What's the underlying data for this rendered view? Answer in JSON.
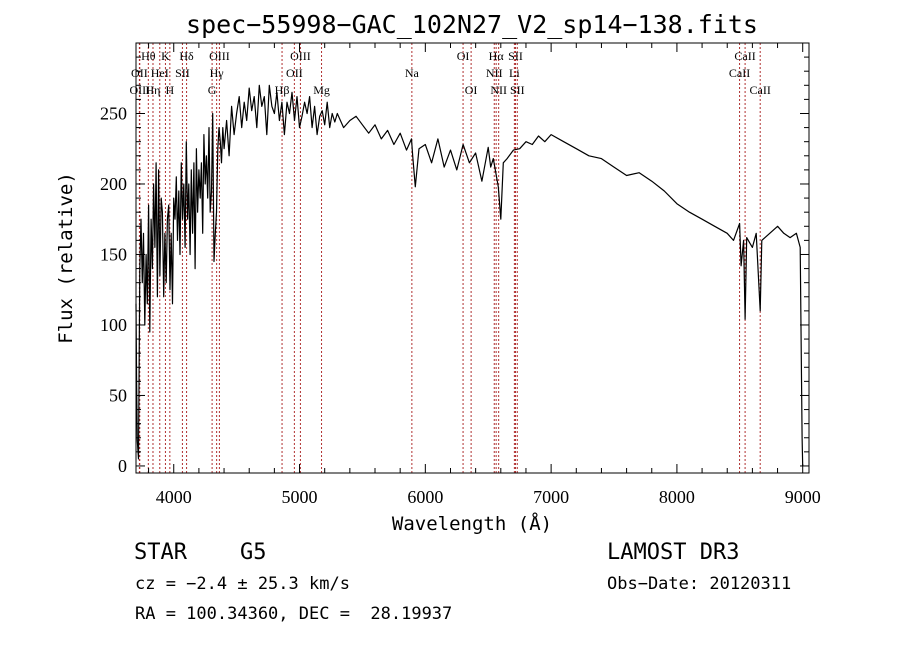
{
  "chart_data": {
    "type": "line",
    "title": "spec−55998−GAC_102N27_V2_sp14−138.fits",
    "xlabel": "Wavelength (Å)",
    "ylabel": "Flux (relative)",
    "xlim": [
      3700,
      9050
    ],
    "ylim": [
      -5,
      300
    ],
    "xticks": [
      4000,
      5000,
      6000,
      7000,
      8000,
      9000
    ],
    "yticks": [
      0,
      50,
      100,
      150,
      200,
      250
    ],
    "colors": {
      "spectrum": "#000000",
      "line_marker": "#b03030"
    },
    "series": [
      {
        "name": "spectrum",
        "x": [
          3700,
          3705,
          3710,
          3720,
          3730,
          3740,
          3750,
          3760,
          3770,
          3780,
          3790,
          3800,
          3810,
          3820,
          3830,
          3840,
          3850,
          3860,
          3870,
          3880,
          3890,
          3900,
          3910,
          3920,
          3930,
          3940,
          3950,
          3960,
          3970,
          3980,
          3990,
          4000,
          4010,
          4020,
          4030,
          4040,
          4050,
          4060,
          4070,
          4080,
          4090,
          4100,
          4110,
          4120,
          4130,
          4140,
          4150,
          4160,
          4170,
          4180,
          4190,
          4200,
          4210,
          4220,
          4230,
          4240,
          4250,
          4260,
          4270,
          4280,
          4290,
          4300,
          4310,
          4320,
          4330,
          4340,
          4350,
          4360,
          4370,
          4380,
          4390,
          4400,
          4420,
          4440,
          4460,
          4480,
          4500,
          4520,
          4540,
          4560,
          4580,
          4600,
          4620,
          4640,
          4660,
          4680,
          4700,
          4720,
          4740,
          4760,
          4780,
          4800,
          4820,
          4840,
          4860,
          4880,
          4900,
          4920,
          4940,
          4960,
          4980,
          5000,
          5020,
          5040,
          5060,
          5080,
          5100,
          5120,
          5140,
          5160,
          5180,
          5200,
          5220,
          5240,
          5260,
          5280,
          5300,
          5350,
          5400,
          5450,
          5500,
          5550,
          5600,
          5650,
          5700,
          5750,
          5800,
          5850,
          5890,
          5900,
          5920,
          5950,
          6000,
          6050,
          6100,
          6150,
          6200,
          6250,
          6300,
          6350,
          6400,
          6450,
          6500,
          6520,
          6540,
          6560,
          6580,
          6600,
          6620,
          6650,
          6700,
          6750,
          6800,
          6850,
          6900,
          6950,
          7000,
          7100,
          7200,
          7300,
          7400,
          7500,
          7600,
          7700,
          7800,
          7900,
          8000,
          8100,
          8200,
          8300,
          8400,
          8450,
          8498,
          8510,
          8530,
          8542,
          8555,
          8580,
          8600,
          8630,
          8662,
          8675,
          8700,
          8750,
          8800,
          8850,
          8900,
          8950,
          8980,
          8995,
          9000
        ],
        "y": [
          115,
          60,
          18,
          5,
          140,
          175,
          130,
          165,
          100,
          150,
          115,
          185,
          95,
          175,
          140,
          200,
          155,
          215,
          120,
          210,
          135,
          190,
          180,
          120,
          165,
          130,
          175,
          185,
          125,
          165,
          115,
          190,
          175,
          205,
          160,
          195,
          150,
          215,
          175,
          200,
          155,
          230,
          175,
          200,
          150,
          210,
          165,
          215,
          140,
          225,
          180,
          210,
          190,
          215,
          165,
          235,
          200,
          220,
          190,
          240,
          180,
          195,
          250,
          145,
          165,
          180,
          225,
          240,
          230,
          215,
          240,
          225,
          245,
          220,
          255,
          235,
          250,
          262,
          240,
          258,
          245,
          268,
          252,
          262,
          240,
          270,
          255,
          262,
          235,
          270,
          255,
          250,
          265,
          245,
          258,
          235,
          258,
          250,
          265,
          245,
          262,
          240,
          248,
          258,
          250,
          262,
          240,
          255,
          235,
          248,
          252,
          242,
          258,
          240,
          250,
          244,
          250,
          240,
          245,
          248,
          242,
          236,
          242,
          232,
          238,
          228,
          236,
          224,
          232,
          220,
          198,
          225,
          228,
          215,
          232,
          212,
          224,
          210,
          228,
          215,
          222,
          202,
          226,
          212,
          218,
          208,
          198,
          175,
          215,
          218,
          224,
          225,
          230,
          228,
          234,
          230,
          235,
          230,
          225,
          220,
          218,
          212,
          206,
          208,
          202,
          195,
          186,
          180,
          175,
          170,
          165,
          160,
          172,
          142,
          160,
          104,
          162,
          158,
          155,
          165,
          110,
          160,
          162,
          166,
          170,
          165,
          162,
          165,
          155,
          20,
          0
        ]
      }
    ],
    "line_markers": [
      {
        "label": "Hθ",
        "x": 3798,
        "row": 0
      },
      {
        "label": "OII",
        "x": 3727,
        "row": 1
      },
      {
        "label": "OIII",
        "x": 3730,
        "row": 2
      },
      {
        "label": "HeI",
        "x": 3889,
        "row": 1
      },
      {
        "label": "Hη",
        "x": 3835,
        "row": 2
      },
      {
        "label": "K",
        "x": 3934,
        "row": 0
      },
      {
        "label": "SII",
        "x": 4069,
        "row": 1
      },
      {
        "label": "H",
        "x": 3969,
        "row": 2
      },
      {
        "label": "Hδ",
        "x": 4102,
        "row": 0
      },
      {
        "label": "OIII",
        "x": 4363,
        "row": 0
      },
      {
        "label": "Hγ",
        "x": 4341,
        "row": 1
      },
      {
        "label": "G",
        "x": 4305,
        "row": 2
      },
      {
        "label": "OIII",
        "x": 5007,
        "row": 0
      },
      {
        "label": "OII",
        "x": 4959,
        "row": 1
      },
      {
        "label": "Hβ",
        "x": 4861,
        "row": 2
      },
      {
        "label": "Mg",
        "x": 5175,
        "row": 2
      },
      {
        "label": "Na",
        "x": 5893,
        "row": 1
      },
      {
        "label": "OI",
        "x": 6300,
        "row": 0
      },
      {
        "label": "OI",
        "x": 6364,
        "row": 2
      },
      {
        "label": "Hα",
        "x": 6563,
        "row": 0
      },
      {
        "label": "NII",
        "x": 6548,
        "row": 1
      },
      {
        "label": "NII",
        "x": 6583,
        "row": 2
      },
      {
        "label": "SII",
        "x": 6717,
        "row": 0
      },
      {
        "label": "Li",
        "x": 6708,
        "row": 1
      },
      {
        "label": "SII",
        "x": 6731,
        "row": 2
      },
      {
        "label": "CaII",
        "x": 8542,
        "row": 0
      },
      {
        "label": "CaII",
        "x": 8498,
        "row": 1
      },
      {
        "label": "CaII",
        "x": 8662,
        "row": 2
      }
    ]
  },
  "info": {
    "class": "STAR",
    "subclass": "G5",
    "survey": "LAMOST DR3",
    "redshift": "cz = −2.4 ± 25.3 km/s",
    "obs_date": "Obs−Date: 20120311",
    "coords": "RA = 100.34360, DEC =  28.19937"
  }
}
